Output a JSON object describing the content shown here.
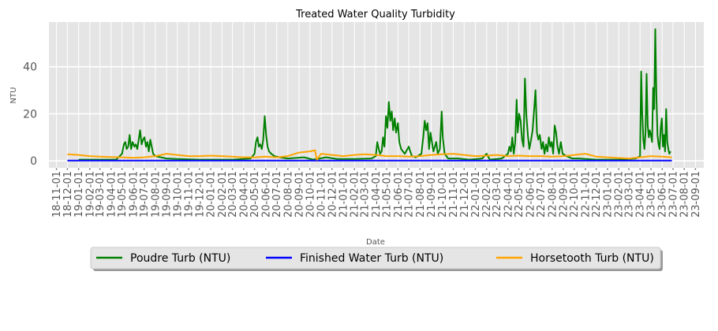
{
  "chart_data": {
    "type": "line",
    "title": "Treated Water Quality Turbidity",
    "xlabel": "Date",
    "ylabel": "NTU",
    "ylim": [
      -3,
      59
    ],
    "yticks": [
      0,
      20,
      40
    ],
    "xlim": [
      "2018-10-11",
      "2023-09-24"
    ],
    "grid": true,
    "legend_position": "bottom-center",
    "xtick_labels": [
      "18-11-01",
      "18-12-01",
      "19-01-01",
      "19-02-01",
      "19-03-01",
      "19-04-01",
      "19-05-01",
      "19-06-01",
      "19-07-01",
      "19-08-01",
      "19-09-01",
      "19-10-01",
      "19-11-01",
      "19-12-01",
      "20-01-01",
      "20-02-01",
      "20-03-01",
      "20-04-01",
      "20-05-01",
      "20-06-01",
      "20-07-01",
      "20-08-01",
      "20-09-01",
      "20-10-01",
      "20-11-01",
      "20-12-01",
      "21-01-01",
      "21-02-01",
      "21-03-01",
      "21-04-01",
      "21-05-01",
      "21-06-01",
      "21-07-01",
      "21-08-01",
      "21-09-01",
      "21-10-01",
      "21-11-01",
      "21-12-01",
      "22-01-01",
      "22-02-01",
      "22-03-01",
      "22-04-01",
      "22-05-01",
      "22-06-01",
      "22-07-01",
      "22-08-01",
      "22-09-01",
      "22-10-01",
      "22-11-01",
      "22-12-01",
      "23-01-01",
      "23-02-01",
      "23-03-01",
      "23-04-01",
      "23-05-01",
      "23-06-01",
      "23-07-01",
      "23-08-01",
      "23-09-01"
    ],
    "series": [
      {
        "name": "Poudre Turb (NTU)",
        "color": "#008000",
        "points": [
          [
            "2019-01-01",
            0.5
          ],
          [
            "2019-02-15",
            0.5
          ],
          [
            "2019-04-15",
            0.5
          ],
          [
            "2019-05-01",
            3
          ],
          [
            "2019-05-06",
            7
          ],
          [
            "2019-05-10",
            8
          ],
          [
            "2019-05-14",
            5
          ],
          [
            "2019-05-18",
            6
          ],
          [
            "2019-05-22",
            11
          ],
          [
            "2019-05-26",
            5
          ],
          [
            "2019-05-30",
            8
          ],
          [
            "2019-06-04",
            6
          ],
          [
            "2019-06-08",
            7
          ],
          [
            "2019-06-12",
            5
          ],
          [
            "2019-06-16",
            9
          ],
          [
            "2019-06-20",
            13
          ],
          [
            "2019-06-24",
            7
          ],
          [
            "2019-06-28",
            9
          ],
          [
            "2019-07-02",
            10
          ],
          [
            "2019-07-06",
            6
          ],
          [
            "2019-07-10",
            8
          ],
          [
            "2019-07-14",
            4
          ],
          [
            "2019-07-18",
            9
          ],
          [
            "2019-07-22",
            6
          ],
          [
            "2019-07-26",
            3
          ],
          [
            "2019-08-01",
            2
          ],
          [
            "2019-09-01",
            1
          ],
          [
            "2019-10-01",
            0.8
          ],
          [
            "2019-12-01",
            0.5
          ],
          [
            "2020-03-01",
            0.5
          ],
          [
            "2020-04-20",
            1
          ],
          [
            "2020-05-01",
            3
          ],
          [
            "2020-05-05",
            8
          ],
          [
            "2020-05-09",
            10
          ],
          [
            "2020-05-13",
            6
          ],
          [
            "2020-05-17",
            7
          ],
          [
            "2020-05-21",
            5
          ],
          [
            "2020-05-25",
            9
          ],
          [
            "2020-05-29",
            19
          ],
          [
            "2020-06-02",
            11
          ],
          [
            "2020-06-06",
            6
          ],
          [
            "2020-06-10",
            4
          ],
          [
            "2020-06-16",
            3
          ],
          [
            "2020-06-25",
            2
          ],
          [
            "2020-07-10",
            1.5
          ],
          [
            "2020-08-01",
            1
          ],
          [
            "2020-09-15",
            1.5
          ],
          [
            "2020-10-10",
            0.5
          ],
          [
            "2020-11-15",
            1.5
          ],
          [
            "2020-12-15",
            0.8
          ],
          [
            "2021-02-01",
            0.8
          ],
          [
            "2021-03-20",
            1
          ],
          [
            "2021-04-01",
            2
          ],
          [
            "2021-04-05",
            8
          ],
          [
            "2021-04-09",
            5
          ],
          [
            "2021-04-13",
            3
          ],
          [
            "2021-04-17",
            4
          ],
          [
            "2021-04-21",
            10
          ],
          [
            "2021-04-25",
            6
          ],
          [
            "2021-04-29",
            19
          ],
          [
            "2021-05-03",
            14
          ],
          [
            "2021-05-07",
            25
          ],
          [
            "2021-05-11",
            17
          ],
          [
            "2021-05-15",
            21
          ],
          [
            "2021-05-19",
            13
          ],
          [
            "2021-05-23",
            18
          ],
          [
            "2021-05-27",
            12
          ],
          [
            "2021-06-01",
            16
          ],
          [
            "2021-06-05",
            8
          ],
          [
            "2021-06-10",
            5
          ],
          [
            "2021-06-15",
            4
          ],
          [
            "2021-06-20",
            3
          ],
          [
            "2021-07-01",
            6
          ],
          [
            "2021-07-05",
            4
          ],
          [
            "2021-07-10",
            2
          ],
          [
            "2021-07-20",
            1.5
          ],
          [
            "2021-08-05",
            3
          ],
          [
            "2021-08-10",
            10
          ],
          [
            "2021-08-14",
            17
          ],
          [
            "2021-08-18",
            13
          ],
          [
            "2021-08-22",
            16
          ],
          [
            "2021-08-26",
            5
          ],
          [
            "2021-08-30",
            12
          ],
          [
            "2021-09-03",
            8
          ],
          [
            "2021-09-07",
            4
          ],
          [
            "2021-09-11",
            6
          ],
          [
            "2021-09-15",
            8
          ],
          [
            "2021-09-19",
            3
          ],
          [
            "2021-09-25",
            5
          ],
          [
            "2021-09-30",
            21
          ],
          [
            "2021-10-03",
            10
          ],
          [
            "2021-10-08",
            3
          ],
          [
            "2021-10-18",
            1
          ],
          [
            "2021-11-15",
            1
          ],
          [
            "2021-12-15",
            0.5
          ],
          [
            "2022-01-20",
            1
          ],
          [
            "2022-02-01",
            3
          ],
          [
            "2022-02-10",
            0.5
          ],
          [
            "2022-03-15",
            1
          ],
          [
            "2022-04-01",
            3
          ],
          [
            "2022-04-05",
            6
          ],
          [
            "2022-04-09",
            4
          ],
          [
            "2022-04-13",
            10
          ],
          [
            "2022-04-17",
            3
          ],
          [
            "2022-04-21",
            8
          ],
          [
            "2022-04-25",
            26
          ],
          [
            "2022-04-28",
            12
          ],
          [
            "2022-05-02",
            20
          ],
          [
            "2022-05-06",
            17
          ],
          [
            "2022-05-10",
            9
          ],
          [
            "2022-05-14",
            6
          ],
          [
            "2022-05-18",
            35
          ],
          [
            "2022-05-22",
            19
          ],
          [
            "2022-05-26",
            11
          ],
          [
            "2022-05-30",
            5
          ],
          [
            "2022-06-04",
            9
          ],
          [
            "2022-06-08",
            13
          ],
          [
            "2022-06-12",
            21
          ],
          [
            "2022-06-16",
            30
          ],
          [
            "2022-06-20",
            12
          ],
          [
            "2022-06-24",
            9
          ],
          [
            "2022-06-28",
            11
          ],
          [
            "2022-07-03",
            5
          ],
          [
            "2022-07-07",
            8
          ],
          [
            "2022-07-11",
            3
          ],
          [
            "2022-07-15",
            7
          ],
          [
            "2022-07-19",
            4
          ],
          [
            "2022-07-23",
            10
          ],
          [
            "2022-07-27",
            6
          ],
          [
            "2022-07-31",
            8
          ],
          [
            "2022-08-04",
            3
          ],
          [
            "2022-08-08",
            15
          ],
          [
            "2022-08-12",
            12
          ],
          [
            "2022-08-16",
            6
          ],
          [
            "2022-08-20",
            3
          ],
          [
            "2022-08-25",
            8
          ],
          [
            "2022-08-30",
            3
          ],
          [
            "2022-09-10",
            2
          ],
          [
            "2022-09-25",
            1
          ],
          [
            "2022-10-15",
            1
          ],
          [
            "2022-12-01",
            0.5
          ],
          [
            "2023-02-01",
            0.5
          ],
          [
            "2023-03-20",
            1
          ],
          [
            "2023-04-01",
            2
          ],
          [
            "2023-04-04",
            38
          ],
          [
            "2023-04-07",
            20
          ],
          [
            "2023-04-10",
            9
          ],
          [
            "2023-04-13",
            5
          ],
          [
            "2023-04-16",
            12
          ],
          [
            "2023-04-19",
            37
          ],
          [
            "2023-04-22",
            15
          ],
          [
            "2023-04-25",
            10
          ],
          [
            "2023-04-28",
            13
          ],
          [
            "2023-05-01",
            11
          ],
          [
            "2023-05-04",
            8
          ],
          [
            "2023-05-07",
            31
          ],
          [
            "2023-05-10",
            22
          ],
          [
            "2023-05-13",
            56
          ],
          [
            "2023-05-16",
            28
          ],
          [
            "2023-05-19",
            11
          ],
          [
            "2023-05-22",
            7
          ],
          [
            "2023-05-25",
            5
          ],
          [
            "2023-05-28",
            14
          ],
          [
            "2023-05-31",
            18
          ],
          [
            "2023-06-03",
            6
          ],
          [
            "2023-06-06",
            11
          ],
          [
            "2023-06-09",
            4
          ],
          [
            "2023-06-12",
            22
          ],
          [
            "2023-06-15",
            8
          ],
          [
            "2023-06-18",
            5
          ],
          [
            "2023-06-21",
            3
          ],
          [
            "2023-06-24",
            4
          ]
        ]
      },
      {
        "name": "Finished Water Turb (NTU)",
        "color": "#0000ff",
        "points": [
          [
            "2018-12-01",
            0.1
          ],
          [
            "2019-06-01",
            0.1
          ],
          [
            "2020-01-01",
            0.1
          ],
          [
            "2020-06-01",
            0.1
          ],
          [
            "2021-01-01",
            0.1
          ],
          [
            "2021-06-01",
            0.1
          ],
          [
            "2022-01-01",
            0.1
          ],
          [
            "2022-06-01",
            0.1
          ],
          [
            "2023-01-01",
            0.1
          ],
          [
            "2023-06-01",
            0.1
          ],
          [
            "2023-06-28",
            0.1
          ]
        ]
      },
      {
        "name": "Horsetooth Turb (NTU)",
        "color": "#ffa500",
        "points": [
          [
            "2018-12-01",
            2.8
          ],
          [
            "2019-01-01",
            2.5
          ],
          [
            "2019-02-01",
            2
          ],
          [
            "2019-03-01",
            1.8
          ],
          [
            "2019-04-01",
            1.6
          ],
          [
            "2019-05-01",
            1.5
          ],
          [
            "2019-06-01",
            1.3
          ],
          [
            "2019-07-01",
            1.5
          ],
          [
            "2019-08-01",
            2
          ],
          [
            "2019-09-01",
            3
          ],
          [
            "2019-10-01",
            2.5
          ],
          [
            "2019-11-01",
            2
          ],
          [
            "2019-12-01",
            2
          ],
          [
            "2020-01-01",
            2.2
          ],
          [
            "2020-02-01",
            2
          ],
          [
            "2020-03-01",
            1.8
          ],
          [
            "2020-04-01",
            1.5
          ],
          [
            "2020-05-01",
            1.5
          ],
          [
            "2020-06-01",
            1.8
          ],
          [
            "2020-07-01",
            1.5
          ],
          [
            "2020-08-01",
            2
          ],
          [
            "2020-09-01",
            3.5
          ],
          [
            "2020-10-01",
            4
          ],
          [
            "2020-10-15",
            4.5
          ],
          [
            "2020-10-20",
            0.5
          ],
          [
            "2020-11-01",
            3
          ],
          [
            "2020-12-01",
            2.5
          ],
          [
            "2021-01-01",
            2
          ],
          [
            "2021-02-01",
            2.5
          ],
          [
            "2021-03-01",
            2.8
          ],
          [
            "2021-04-01",
            2.5
          ],
          [
            "2021-05-01",
            2
          ],
          [
            "2021-06-01",
            2
          ],
          [
            "2021-07-01",
            1.8
          ],
          [
            "2021-08-01",
            2
          ],
          [
            "2021-09-01",
            2.5
          ],
          [
            "2021-10-01",
            2.8
          ],
          [
            "2021-11-01",
            3
          ],
          [
            "2021-12-01",
            2.5
          ],
          [
            "2022-01-01",
            2
          ],
          [
            "2022-02-01",
            2.2
          ],
          [
            "2022-03-01",
            2.5
          ],
          [
            "2022-04-01",
            2
          ],
          [
            "2022-05-01",
            2.2
          ],
          [
            "2022-06-01",
            2
          ],
          [
            "2022-07-01",
            2
          ],
          [
            "2022-08-01",
            1.8
          ],
          [
            "2022-09-01",
            2
          ],
          [
            "2022-10-01",
            2.5
          ],
          [
            "2022-11-01",
            3
          ],
          [
            "2022-12-01",
            1.8
          ],
          [
            "2023-01-01",
            1.5
          ],
          [
            "2023-02-01",
            1.2
          ],
          [
            "2023-03-01",
            1
          ],
          [
            "2023-04-01",
            1.5
          ],
          [
            "2023-05-01",
            2
          ],
          [
            "2023-06-01",
            1.8
          ],
          [
            "2023-06-28",
            1.5
          ]
        ]
      }
    ]
  }
}
